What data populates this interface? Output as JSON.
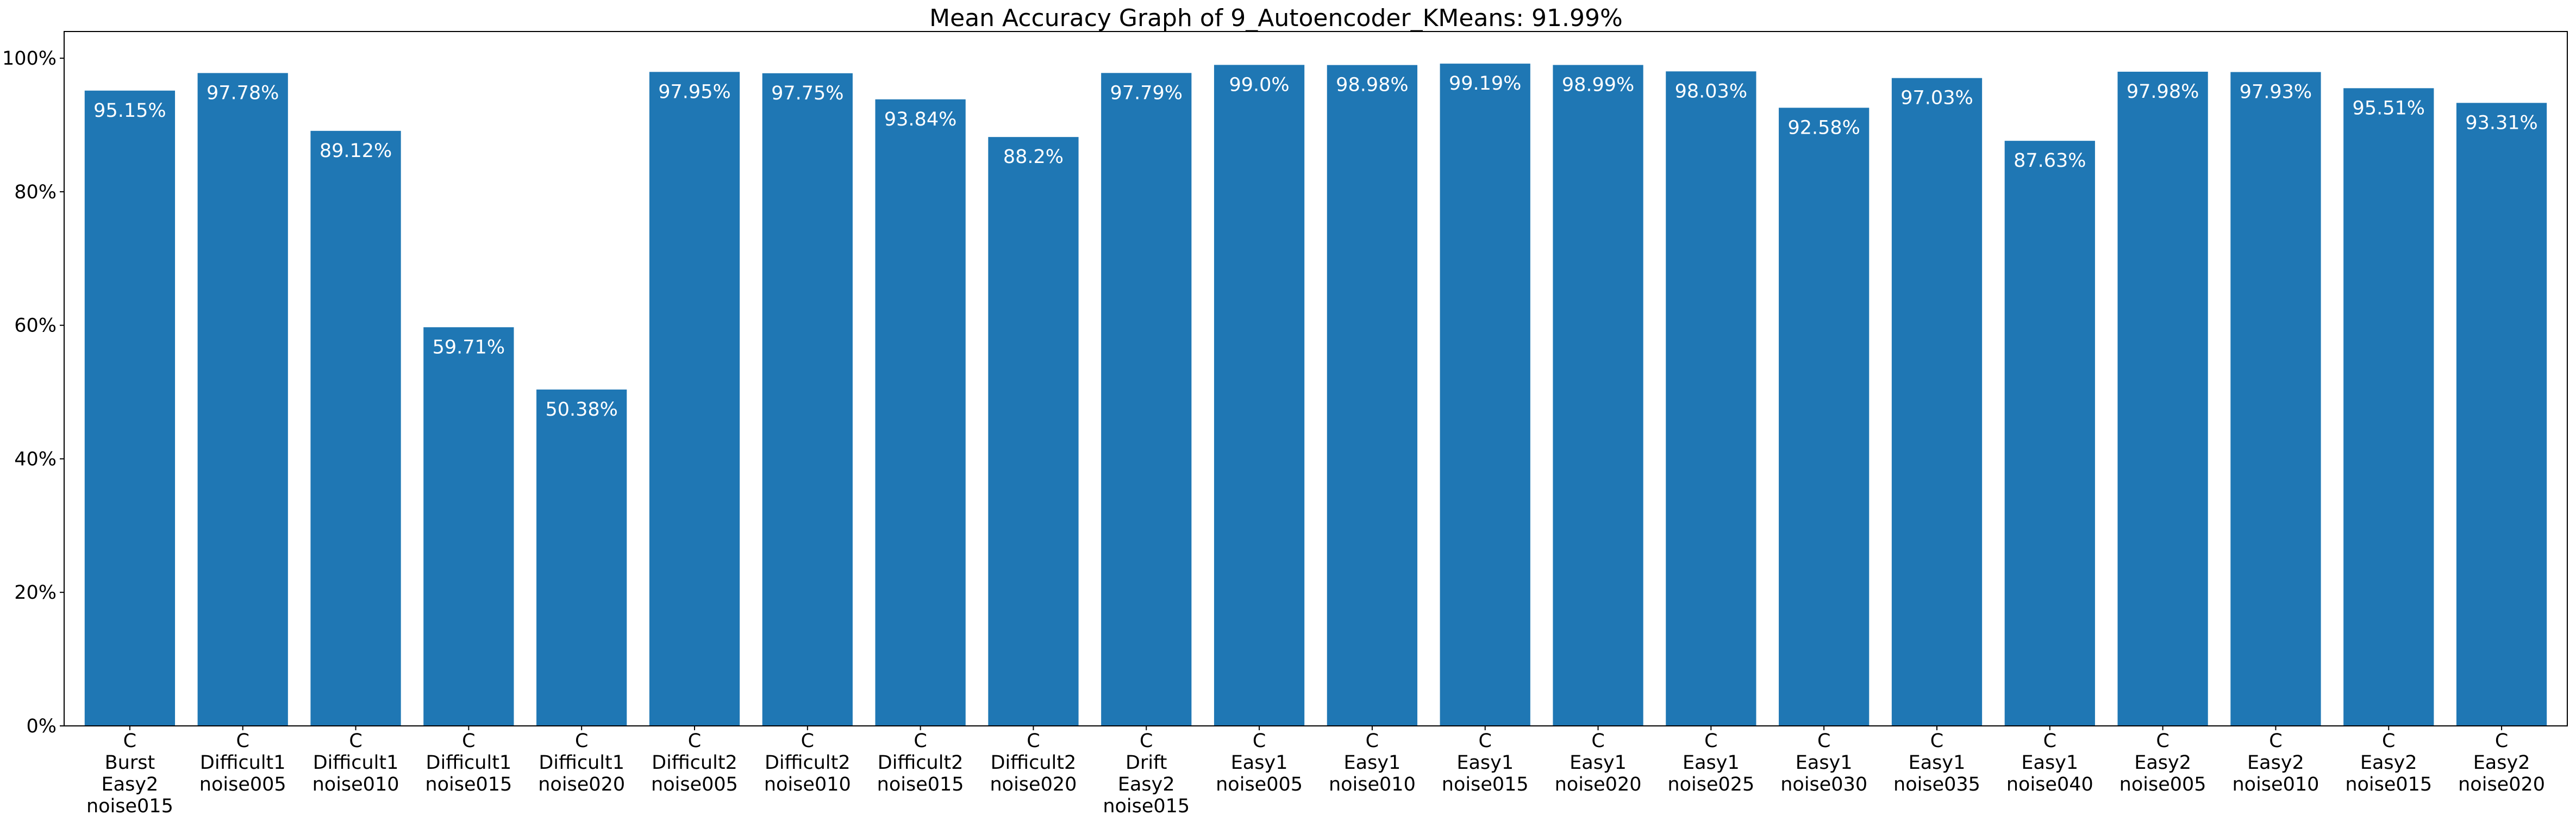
{
  "chart_data": {
    "type": "bar",
    "title": "Mean Accuracy Graph of 9_Autoencoder_KMeans: 91.99%",
    "xlabel": "",
    "ylabel": "",
    "ylim": [
      0,
      104
    ],
    "yticks": [
      0,
      20,
      40,
      60,
      80,
      100
    ],
    "ytick_labels": [
      "0%",
      "20%",
      "40%",
      "60%",
      "80%",
      "100%"
    ],
    "grid": false,
    "legend": "none",
    "bar_color": "#1f77b4",
    "data_label_color": "#ffffff",
    "categories": [
      [
        "C",
        "Burst",
        "Easy2",
        "noise015"
      ],
      [
        "C",
        "Difficult1",
        "noise005"
      ],
      [
        "C",
        "Difficult1",
        "noise010"
      ],
      [
        "C",
        "Difficult1",
        "noise015"
      ],
      [
        "C",
        "Difficult1",
        "noise020"
      ],
      [
        "C",
        "Difficult2",
        "noise005"
      ],
      [
        "C",
        "Difficult2",
        "noise010"
      ],
      [
        "C",
        "Difficult2",
        "noise015"
      ],
      [
        "C",
        "Difficult2",
        "noise020"
      ],
      [
        "C",
        "Drift",
        "Easy2",
        "noise015"
      ],
      [
        "C",
        "Easy1",
        "noise005"
      ],
      [
        "C",
        "Easy1",
        "noise010"
      ],
      [
        "C",
        "Easy1",
        "noise015"
      ],
      [
        "C",
        "Easy1",
        "noise020"
      ],
      [
        "C",
        "Easy1",
        "noise025"
      ],
      [
        "C",
        "Easy1",
        "noise030"
      ],
      [
        "C",
        "Easy1",
        "noise035"
      ],
      [
        "C",
        "Easy1",
        "noise040"
      ],
      [
        "C",
        "Easy2",
        "noise005"
      ],
      [
        "C",
        "Easy2",
        "noise010"
      ],
      [
        "C",
        "Easy2",
        "noise015"
      ],
      [
        "C",
        "Easy2",
        "noise020"
      ]
    ],
    "values": [
      95.15,
      97.78,
      89.12,
      59.71,
      50.38,
      97.95,
      97.75,
      93.84,
      88.2,
      97.79,
      99.0,
      98.98,
      99.19,
      98.99,
      98.03,
      92.58,
      97.03,
      87.63,
      97.98,
      97.93,
      95.51,
      93.31
    ],
    "data_labels": [
      "95.15%",
      "97.78%",
      "89.12%",
      "59.71%",
      "50.38%",
      "97.95%",
      "97.75%",
      "93.84%",
      "88.2%",
      "97.79%",
      "99.0%",
      "98.98%",
      "99.19%",
      "98.99%",
      "98.03%",
      "92.58%",
      "97.03%",
      "87.63%",
      "97.98%",
      "97.93%",
      "95.51%",
      "93.31%"
    ]
  }
}
